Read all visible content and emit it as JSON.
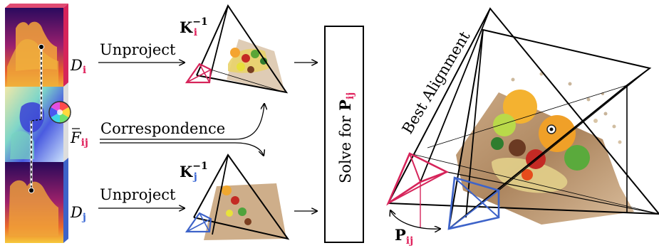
{
  "labels": {
    "depth_i": {
      "letter": "D",
      "sub": "i"
    },
    "depth_j": {
      "letter": "D",
      "sub": "j"
    },
    "flow": {
      "letter": "F",
      "sub": "ij"
    },
    "unproject_top": "Unproject",
    "unproject_bottom": "Unproject",
    "correspondence": "Correspondence",
    "k_inv_i": {
      "letter": "K",
      "sub": "i",
      "sup": "−1"
    },
    "k_inv_j": {
      "letter": "K",
      "sub": "j",
      "sup": "−1"
    },
    "solve": {
      "prefix": "Solve for",
      "letter": "P",
      "sub": "ij"
    },
    "best_alignment": "Best Alignment",
    "pose": {
      "letter": "P",
      "sub": "ij"
    }
  },
  "colors": {
    "camera_i": "#d6245a",
    "camera_j": "#3d63c9",
    "index_i": "#e0245e",
    "index_j": "#3d6ad6",
    "line": "#000000"
  }
}
